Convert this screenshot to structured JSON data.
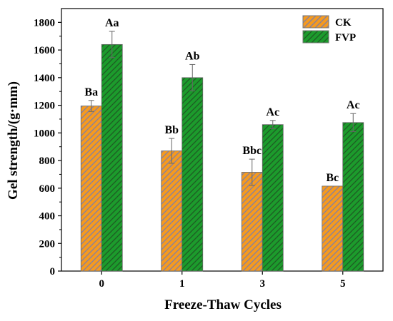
{
  "chart_data": {
    "type": "bar",
    "title": "",
    "xlabel": "Freeze-Thaw Cycles",
    "ylabel": "Gel strength/(g·mm)",
    "categories": [
      "0",
      "1",
      "3",
      "5"
    ],
    "ylim": [
      0,
      1900
    ],
    "yticks": [
      0,
      200,
      400,
      600,
      800,
      1000,
      1200,
      1400,
      1600,
      1800
    ],
    "legend_position": "top-right",
    "series": [
      {
        "name": "CK",
        "color": "#f59a1f",
        "hatch_color": "#7f7fa8",
        "values": [
          1195,
          870,
          715,
          615
        ],
        "errors": [
          40,
          90,
          95,
          0
        ],
        "labels": [
          "Ba",
          "Bb",
          "Bbc",
          "Bc"
        ]
      },
      {
        "name": "FVP",
        "color": "#1c9b2c",
        "hatch_color": "#1e5a23",
        "values": [
          1640,
          1400,
          1060,
          1075
        ],
        "errors": [
          95,
          95,
          30,
          65
        ],
        "labels": [
          "Aa",
          "Ab",
          "Ac",
          "Ac"
        ]
      }
    ]
  }
}
